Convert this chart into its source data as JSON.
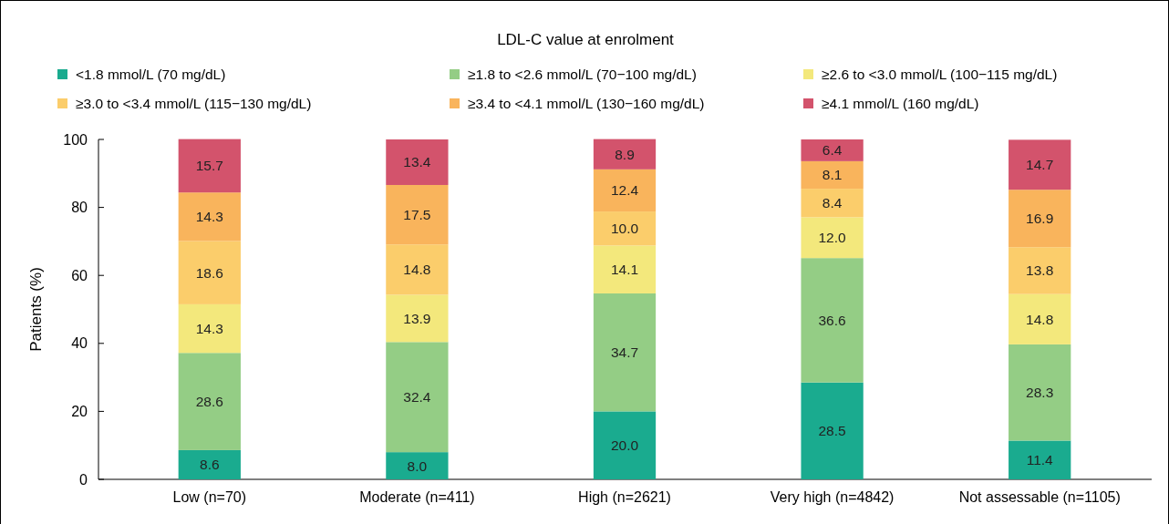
{
  "chart_data": {
    "type": "bar",
    "stacked": true,
    "legend_title": "LDL-C value at enrolment",
    "ylabel": "Patients (%)",
    "categories": [
      "Low (n=70)",
      "Moderate (n=411)",
      "High (n=2621)",
      "Very high (n=4842)",
      "Not assessable (n=1105)"
    ],
    "series": [
      {
        "name": "<1.8 mmol/L (70 mg/dL)",
        "color": "#1aab8f",
        "values": [
          8.6,
          8.0,
          20.0,
          28.5,
          11.4
        ],
        "value_labels": [
          "8.6",
          "8.0",
          "20.0",
          "28.5",
          "11.4"
        ]
      },
      {
        "name": "≥1.8 to <2.6 mmol/L (70−100 mg/dL)",
        "color": "#94cd85",
        "values": [
          28.6,
          32.4,
          34.7,
          36.6,
          28.3
        ],
        "value_labels": [
          "28.6",
          "32.4",
          "34.7",
          "36.6",
          "28.3"
        ]
      },
      {
        "name": "≥2.6 to <3.0 mmol/L (100−115 mg/dL)",
        "color": "#f3e87c",
        "values": [
          14.3,
          13.9,
          14.1,
          12.0,
          14.8
        ],
        "value_labels": [
          "14.3",
          "13.9",
          "14.1",
          "12.0",
          "14.8"
        ]
      },
      {
        "name": "≥3.0 to <3.4 mmol/L (115−130 mg/dL)",
        "color": "#fbcd6b",
        "values": [
          18.6,
          14.8,
          10.0,
          8.4,
          13.8
        ],
        "value_labels": [
          "18.6",
          "14.8",
          "10.0",
          "8.4",
          "13.8"
        ]
      },
      {
        "name": "≥3.4 to <4.1 mmol/L (130−160 mg/dL)",
        "color": "#f9b45c",
        "values": [
          14.3,
          17.5,
          12.4,
          8.1,
          16.9
        ],
        "value_labels": [
          "14.3",
          "17.5",
          "12.4",
          "8.1",
          "16.9"
        ]
      },
      {
        "name": "≥4.1 mmol/L (160 mg/dL)",
        "color": "#d3536c",
        "values": [
          15.7,
          13.4,
          8.9,
          6.4,
          14.7
        ],
        "value_labels": [
          "15.7",
          "13.4",
          "8.9",
          "6.4",
          "14.7"
        ]
      }
    ],
    "ylim": [
      0,
      100
    ],
    "yticks": [
      0,
      20,
      40,
      60,
      80,
      100
    ],
    "grid": false,
    "legend": "top"
  }
}
